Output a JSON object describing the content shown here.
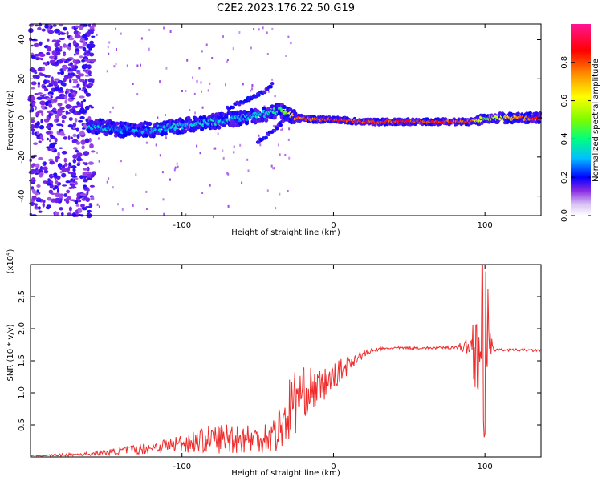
{
  "figure_title": "C2E2.2023.176.22.50.G19",
  "colors": {
    "snr_line": "#ee2c2c",
    "axis": "#000000",
    "colormap": [
      "#ffffff",
      "#8a2be2",
      "#0000ff",
      "#00bfff",
      "#00ff7f",
      "#7cfc00",
      "#ffff00",
      "#ff8c00",
      "#ff0000",
      "#ff1493"
    ]
  },
  "chart_data": [
    {
      "type": "heatmap",
      "xlabel": "Height of straight line (km)",
      "ylabel": "Frequency (Hz)",
      "xlim": [
        -200,
        137
      ],
      "ylim": [
        -50,
        48
      ],
      "xticks": [
        {
          "v": -100,
          "label": "-100"
        },
        {
          "v": 0,
          "label": "0"
        },
        {
          "v": 100,
          "label": "100"
        }
      ],
      "yticks": [
        {
          "v": 40,
          "label": "40"
        },
        {
          "v": 20,
          "label": "20"
        },
        {
          "v": 0,
          "label": "0"
        },
        {
          "v": -20,
          "label": "-20"
        },
        {
          "v": -40,
          "label": "-40"
        }
      ],
      "colorbar": {
        "label": "Normalized spectral amplitude",
        "range": [
          0,
          1
        ],
        "ticks": [
          {
            "v": 0.0,
            "label": "0.0"
          },
          {
            "v": 0.2,
            "label": "0.2"
          },
          {
            "v": 0.4,
            "label": "0.4"
          },
          {
            "v": 0.6,
            "label": "0.6"
          },
          {
            "v": 0.8,
            "label": "0.8"
          }
        ]
      },
      "ridge": {
        "x": [
          -160,
          -140,
          -120,
          -100,
          -80,
          -60,
          -45,
          -35,
          -25,
          -10,
          0,
          20,
          60,
          90,
          100,
          137
        ],
        "freq": [
          -4,
          -6,
          -6,
          -4,
          -2,
          0,
          2,
          4,
          0,
          -1,
          -1,
          -2,
          -2,
          -2,
          0,
          0
        ],
        "amplitude": [
          0.35,
          0.3,
          0.3,
          0.35,
          0.35,
          0.35,
          0.35,
          0.45,
          0.8,
          0.8,
          0.85,
          0.85,
          0.85,
          0.85,
          0.5,
          0.95
        ]
      },
      "upper_branch": {
        "x": [
          -70,
          -55,
          -45,
          -40
        ],
        "freq": [
          5,
          10,
          14,
          17
        ]
      },
      "lower_branch": {
        "x": [
          -50,
          -40,
          -30
        ],
        "freq": [
          -12,
          -7,
          1
        ]
      }
    },
    {
      "type": "line",
      "xlabel": "Height of straight line (km)",
      "ylabel": "SNR (10 * v/v)",
      "y_multiplier": "(x10",
      "y_multiplier_exp": "4",
      "y_multiplier_close": ")",
      "xlim": [
        -200,
        137
      ],
      "ylim": [
        0,
        3
      ],
      "xticks": [
        {
          "v": -100,
          "label": "-100"
        },
        {
          "v": 0,
          "label": "0"
        },
        {
          "v": 100,
          "label": "100"
        }
      ],
      "yticks": [
        {
          "v": 0.5,
          "label": "0.5"
        },
        {
          "v": 1.0,
          "label": "1.0"
        },
        {
          "v": 1.5,
          "label": "1.5"
        },
        {
          "v": 2.0,
          "label": "2.0"
        },
        {
          "v": 2.5,
          "label": "2.5"
        }
      ],
      "series": [
        {
          "name": "SNR",
          "x": [
            -200,
            -180,
            -160,
            -150,
            -140,
            -130,
            -120,
            -110,
            -100,
            -90,
            -80,
            -70,
            -60,
            -50,
            -40,
            -35,
            -30,
            -25,
            -20,
            -15,
            -10,
            -5,
            0,
            5,
            10,
            15,
            20,
            25,
            30,
            40,
            50,
            60,
            70,
            80,
            90,
            95,
            100,
            105,
            110,
            120,
            137
          ],
          "y": [
            0.02,
            0.03,
            0.05,
            0.07,
            0.1,
            0.12,
            0.15,
            0.18,
            0.22,
            0.25,
            0.28,
            0.3,
            0.3,
            0.28,
            0.35,
            0.45,
            0.7,
            0.9,
            1.0,
            1.05,
            1.05,
            1.15,
            1.25,
            1.35,
            1.45,
            1.55,
            1.6,
            1.65,
            1.68,
            1.7,
            1.7,
            1.7,
            1.7,
            1.71,
            1.72,
            1.74,
            1.7,
            1.68,
            1.67,
            1.67,
            1.66
          ],
          "noise": [
            0.01,
            0.02,
            0.03,
            0.04,
            0.06,
            0.08,
            0.1,
            0.12,
            0.15,
            0.18,
            0.22,
            0.25,
            0.25,
            0.22,
            0.3,
            0.4,
            0.5,
            0.55,
            0.4,
            0.35,
            0.3,
            0.25,
            0.2,
            0.18,
            0.15,
            0.1,
            0.06,
            0.04,
            0.03,
            0.02,
            0.02,
            0.02,
            0.02,
            0.03,
            0.15,
            0.9,
            1.6,
            0.05,
            0.02,
            0.02,
            0.02
          ]
        }
      ]
    }
  ]
}
